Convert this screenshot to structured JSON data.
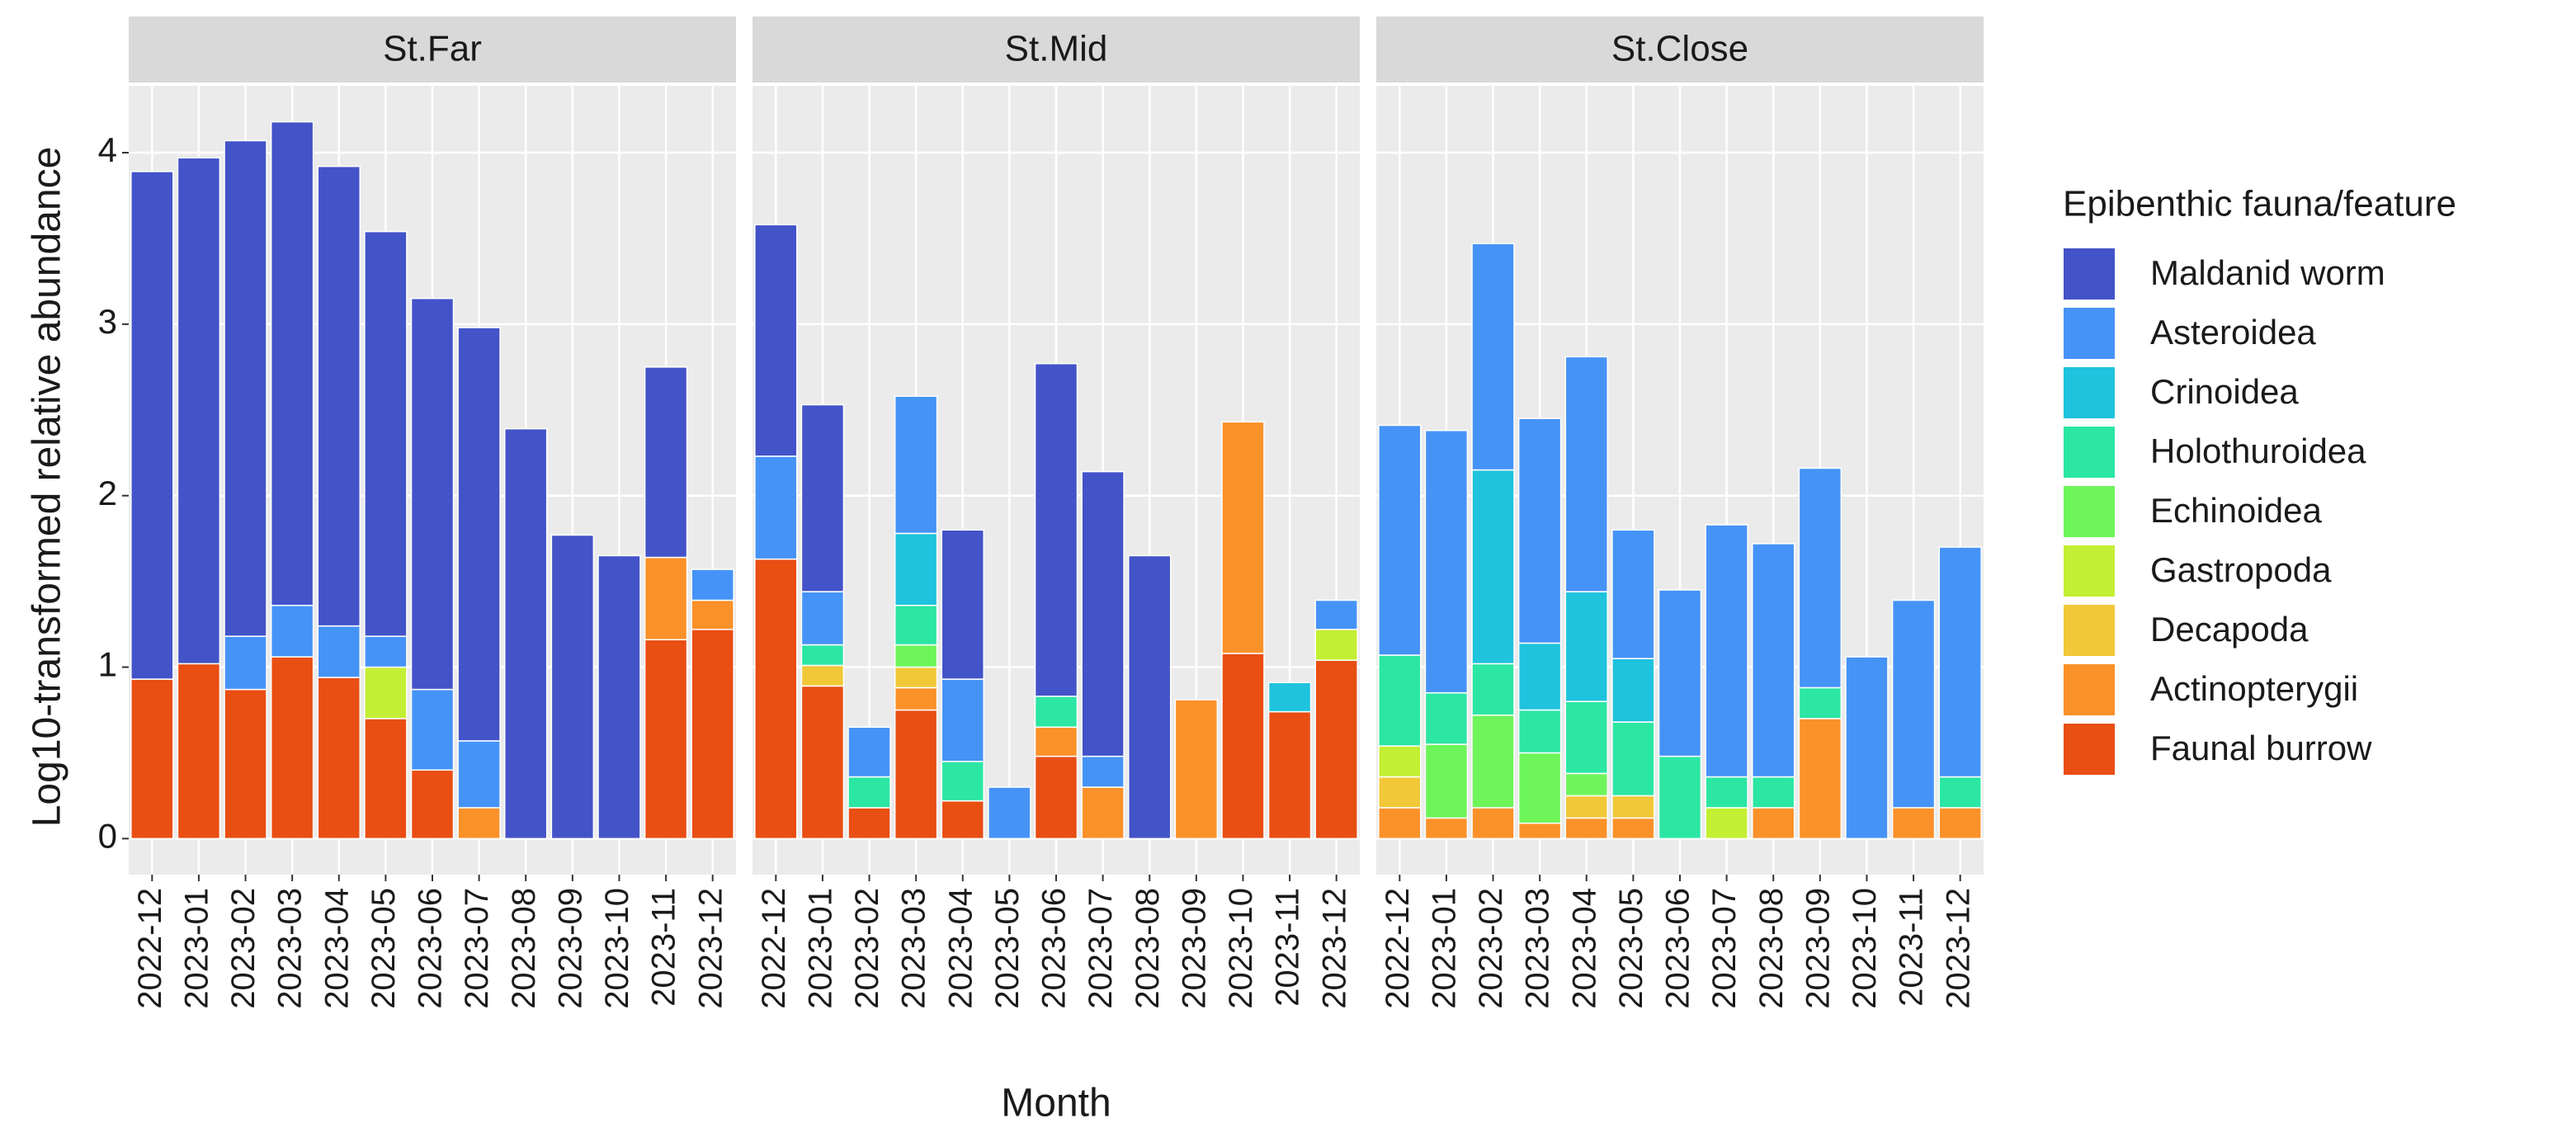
{
  "chart_data": {
    "type": "bar",
    "stacked": true,
    "facets": [
      "St.Far",
      "St.Mid",
      "St.Close"
    ],
    "x_label": "Month",
    "y_label": "Log10-transformed relative abundance",
    "legend_title": "Epibenthic fauna/feature",
    "legend": "right",
    "grid": true,
    "ylim": [
      -0.21,
      4.39
    ],
    "yticks": [
      0,
      1,
      2,
      3,
      4
    ],
    "categories": [
      "2022-12",
      "2023-01",
      "2023-02",
      "2023-03",
      "2023-04",
      "2023-05",
      "2023-06",
      "2023-07",
      "2023-08",
      "2023-09",
      "2023-10",
      "2023-11",
      "2023-12"
    ],
    "series": [
      {
        "name": "Maldanid worm",
        "color": "#4353c8",
        "values": [
          [
            2.96,
            2.95,
            2.89,
            2.82,
            2.68,
            2.36,
            2.28,
            2.41,
            2.39,
            1.77,
            1.65,
            1.11,
            0
          ],
          [
            1.35,
            1.09,
            0,
            0,
            0.87,
            0,
            1.94,
            1.66,
            1.65,
            0,
            0,
            0,
            0
          ],
          [
            0,
            0,
            0,
            0,
            0,
            0,
            0,
            0,
            0,
            0,
            0,
            0,
            0
          ]
        ]
      },
      {
        "name": "Asteroidea",
        "color": "#4693f7",
        "values": [
          [
            0,
            0,
            0.31,
            0.3,
            0.3,
            0.18,
            0.47,
            0.39,
            0,
            0,
            0,
            0,
            0.18
          ],
          [
            0.6,
            0.31,
            0.29,
            0.8,
            0.48,
            0.3,
            0,
            0.18,
            0,
            0,
            0,
            0,
            0.17
          ],
          [
            1.34,
            1.53,
            1.32,
            1.31,
            1.37,
            0.75,
            0.97,
            1.47,
            1.36,
            1.28,
            1.06,
            1.21,
            1.34
          ]
        ]
      },
      {
        "name": "Crinoidea",
        "color": "#1fc3dd",
        "values": [
          [
            0,
            0,
            0,
            0,
            0,
            0,
            0,
            0,
            0,
            0,
            0,
            0,
            0
          ],
          [
            0,
            0,
            0,
            0.42,
            0,
            0,
            0,
            0,
            0,
            0,
            0,
            0.17,
            0
          ],
          [
            0,
            0,
            1.13,
            0.39,
            0.64,
            0.37,
            0,
            0,
            0,
            0,
            0,
            0,
            0
          ]
        ]
      },
      {
        "name": "Holothuroidea",
        "color": "#2ce6a4",
        "values": [
          [
            0,
            0,
            0,
            0,
            0,
            0,
            0,
            0,
            0,
            0,
            0,
            0,
            0
          ],
          [
            0,
            0.12,
            0.18,
            0.23,
            0.23,
            0,
            0.18,
            0,
            0,
            0,
            0,
            0,
            0
          ],
          [
            0.53,
            0.3,
            0.3,
            0.25,
            0.42,
            0.43,
            0.48,
            0.18,
            0.18,
            0.18,
            0,
            0,
            0.18
          ]
        ]
      },
      {
        "name": "Echinoidea",
        "color": "#6ef55a",
        "values": [
          [
            0,
            0,
            0,
            0,
            0,
            0,
            0,
            0,
            0,
            0,
            0,
            0,
            0
          ],
          [
            0,
            0,
            0,
            0.13,
            0,
            0,
            0,
            0,
            0,
            0,
            0,
            0,
            0
          ],
          [
            0,
            0.43,
            0.54,
            0.41,
            0.13,
            0,
            0,
            0,
            0,
            0,
            0,
            0,
            0
          ]
        ]
      },
      {
        "name": "Gastropoda",
        "color": "#c3ef34",
        "values": [
          [
            0,
            0,
            0,
            0,
            0,
            0.3,
            0,
            0,
            0,
            0,
            0,
            0,
            0
          ],
          [
            0,
            0,
            0,
            0,
            0,
            0,
            0,
            0,
            0,
            0,
            0,
            0,
            0.18
          ],
          [
            0.18,
            0,
            0,
            0,
            0,
            0,
            0,
            0.18,
            0,
            0,
            0,
            0,
            0
          ]
        ]
      },
      {
        "name": "Decapoda",
        "color": "#f1c838",
        "values": [
          [
            0,
            0,
            0,
            0,
            0,
            0,
            0,
            0,
            0,
            0,
            0,
            0,
            0
          ],
          [
            0,
            0.12,
            0,
            0.12,
            0,
            0,
            0,
            0,
            0,
            0,
            0,
            0,
            0
          ],
          [
            0.18,
            0,
            0,
            0,
            0.13,
            0.13,
            0,
            0,
            0,
            0,
            0,
            0,
            0
          ]
        ]
      },
      {
        "name": "Actinopterygii",
        "color": "#fb9129",
        "values": [
          [
            0,
            0,
            0,
            0,
            0,
            0,
            0,
            0.18,
            0,
            0,
            0,
            0.48,
            0.17
          ],
          [
            0,
            0,
            0,
            0.13,
            0,
            0,
            0.17,
            0.3,
            0,
            0.81,
            1.35,
            0,
            0
          ],
          [
            0.18,
            0.12,
            0.18,
            0.09,
            0.12,
            0.12,
            0,
            0,
            0.18,
            0.7,
            0,
            0.18,
            0.18
          ]
        ]
      },
      {
        "name": "Faunal burrow",
        "color": "#e94e13",
        "values": [
          [
            0.93,
            1.02,
            0.87,
            1.06,
            0.94,
            0.7,
            0.4,
            0,
            0,
            0,
            0,
            1.16,
            1.22
          ],
          [
            1.63,
            0.89,
            0.18,
            0.75,
            0.22,
            0,
            0.48,
            0,
            0,
            0,
            1.08,
            0.74,
            1.04
          ],
          [
            0,
            0,
            0,
            0,
            0,
            0,
            0,
            0,
            0,
            0,
            0,
            0,
            0
          ]
        ]
      }
    ]
  }
}
